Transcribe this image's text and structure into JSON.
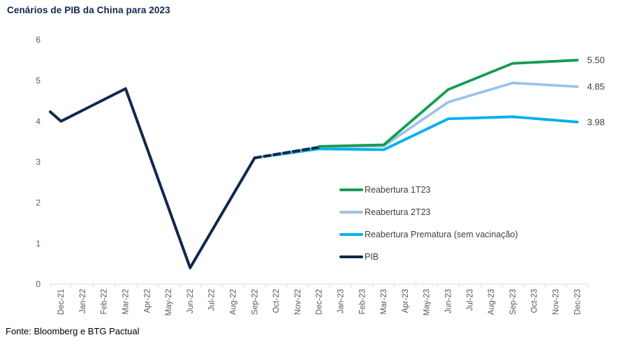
{
  "page": {
    "title": "Cenários de PIB da China para 2023",
    "source": "Fonte: Bloomberg e BTG Pactual"
  },
  "chart_data": {
    "type": "line",
    "title": "Cenários de PIB da China para 2023",
    "xlabel": "",
    "ylabel": "",
    "ylim": [
      0,
      6
    ],
    "yticks": [
      "0",
      "1",
      "2",
      "3",
      "4",
      "5",
      "6"
    ],
    "grid": false,
    "x_tick_rotation": -90,
    "legend_position": "inside-center-right",
    "categories": [
      "Dec-21",
      "Jan-22",
      "Feb-22",
      "Mar-22",
      "Apr-22",
      "May-22",
      "Jun-22",
      "Jul-22",
      "Aug-22",
      "Sep-22",
      "Oct-22",
      "Nov-22",
      "Dec-22",
      "Jan-23",
      "Feb-23",
      "Mar-23",
      "Apr-23",
      "May-23",
      "Jun-23",
      "Jul-23",
      "Aug-23",
      "Sep-23",
      "Oct-23",
      "Nov-23",
      "Dec-23"
    ],
    "series": [
      {
        "name": "Reabertura Prematura (sem vacinação)",
        "color": "#00b0f0",
        "style": "solid",
        "width": 3.8,
        "end_label": "3.98",
        "points": [
          {
            "x": "Sep-22",
            "y": 3.1
          },
          {
            "x": "Dec-22",
            "y": 3.32
          },
          {
            "x": "Mar-23",
            "y": 3.3
          },
          {
            "x": "Jun-23",
            "y": 4.06
          },
          {
            "x": "Sep-23",
            "y": 4.11
          },
          {
            "x": "Dec-23",
            "y": 3.98
          }
        ]
      },
      {
        "name": "Reabertura 2T23",
        "color": "#9dc3e6",
        "style": "solid",
        "width": 3.8,
        "end_label": "4.85",
        "points": [
          {
            "x": "Sep-22",
            "y": 3.1
          },
          {
            "x": "Dec-22",
            "y": 3.37
          },
          {
            "x": "Mar-23",
            "y": 3.39
          },
          {
            "x": "Jun-23",
            "y": 4.47
          },
          {
            "x": "Sep-23",
            "y": 4.94
          },
          {
            "x": "Dec-23",
            "y": 4.85
          }
        ]
      },
      {
        "name": "PIB (estimativa tracejada)",
        "color": "#12284d",
        "style": "dashed",
        "width": 4,
        "points": [
          {
            "x": "Sep-22",
            "y": 3.1
          },
          {
            "x": "Dec-22",
            "y": 3.36
          }
        ]
      },
      {
        "name": "Reabertura 1T23",
        "color": "#169b53",
        "style": "solid",
        "width": 3.8,
        "end_label": "5.50",
        "points": [
          {
            "x": "Dec-22",
            "y": 3.38
          },
          {
            "x": "Mar-23",
            "y": 3.42
          },
          {
            "x": "Jun-23",
            "y": 4.78
          },
          {
            "x": "Sep-23",
            "y": 5.42
          },
          {
            "x": "Dec-23",
            "y": 5.5
          }
        ]
      },
      {
        "name": "PIB",
        "color": "#12284d",
        "style": "solid",
        "width": 4,
        "clipped_lead_in_value": 4.23,
        "points": [
          {
            "x": "Dec-21",
            "y": 4.0
          },
          {
            "x": "Mar-22",
            "y": 4.8
          },
          {
            "x": "Jun-22",
            "y": 0.4
          },
          {
            "x": "Sep-22",
            "y": 3.1
          }
        ]
      }
    ],
    "legend": [
      {
        "label": "Reabertura 1T23",
        "color": "#169b53"
      },
      {
        "label": "Reabertura 2T23",
        "color": "#9dc3e6"
      },
      {
        "label": "Reabertura Prematura (sem vacinação)",
        "color": "#00b0f0"
      },
      {
        "label": "PIB",
        "color": "#12284d"
      }
    ],
    "colors": {
      "axis_line": "#d9d9d9",
      "tick_label": "#595959",
      "end_label": "#3f3f3f"
    }
  }
}
